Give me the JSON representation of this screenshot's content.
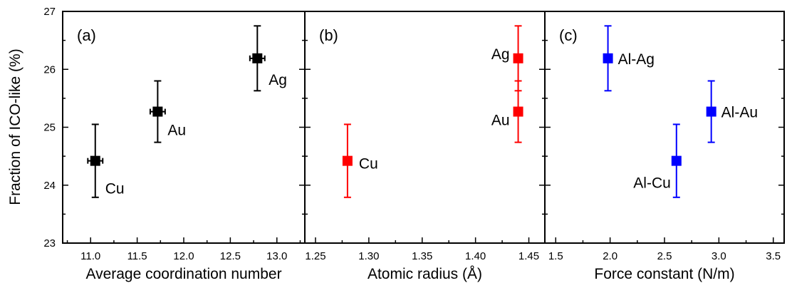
{
  "ylabel": "Fraction of ICO-like (%)",
  "chart_data": [
    {
      "panel": "(a)",
      "type": "scatter",
      "xlabel": "Average coordination number",
      "ylabel": "Fraction of ICO-like (%)",
      "xlim": [
        10.7,
        13.3
      ],
      "ylim": [
        23,
        27
      ],
      "xticks": [
        "11.0",
        "11.5",
        "12.0",
        "12.5",
        "13.0"
      ],
      "yticks": [
        "23",
        "24",
        "25",
        "26",
        "27"
      ],
      "color": "#000000",
      "points": [
        {
          "label": "Cu",
          "x": 11.05,
          "y": 24.42,
          "yerr": 0.63,
          "xerr": 0.08
        },
        {
          "label": "Au",
          "x": 11.72,
          "y": 25.27,
          "yerr": 0.53,
          "xerr": 0.08
        },
        {
          "label": "Ag",
          "x": 12.79,
          "y": 26.19,
          "yerr": 0.56,
          "xerr": 0.08
        }
      ]
    },
    {
      "panel": "(b)",
      "type": "scatter",
      "xlabel": "Atomic radius (Å)",
      "xlim": [
        1.24,
        1.465
      ],
      "ylim": [
        23,
        27
      ],
      "xticks": [
        "1.25",
        "1.30",
        "1.35",
        "1.40",
        "1.45"
      ],
      "color": "#ff0000",
      "points": [
        {
          "label": "Cu",
          "x": 1.28,
          "y": 24.42,
          "yerr": 0.63
        },
        {
          "label": "Au",
          "x": 1.44,
          "y": 25.27,
          "yerr": 0.53
        },
        {
          "label": "Ag",
          "x": 1.44,
          "y": 26.19,
          "yerr": 0.56
        }
      ]
    },
    {
      "panel": "(c)",
      "type": "scatter",
      "xlabel": "Force constant (N/m)",
      "xlim": [
        1.4,
        3.6
      ],
      "ylim": [
        23,
        27
      ],
      "xticks": [
        "1.5",
        "2.0",
        "2.5",
        "3.0",
        "3.5"
      ],
      "color": "#0000ff",
      "points": [
        {
          "label": "Al-Cu",
          "x": 2.61,
          "y": 24.42,
          "yerr": 0.63
        },
        {
          "label": "Al-Au",
          "x": 2.93,
          "y": 25.27,
          "yerr": 0.53
        },
        {
          "label": "Al-Ag",
          "x": 1.98,
          "y": 26.19,
          "yerr": 0.56
        }
      ]
    }
  ]
}
